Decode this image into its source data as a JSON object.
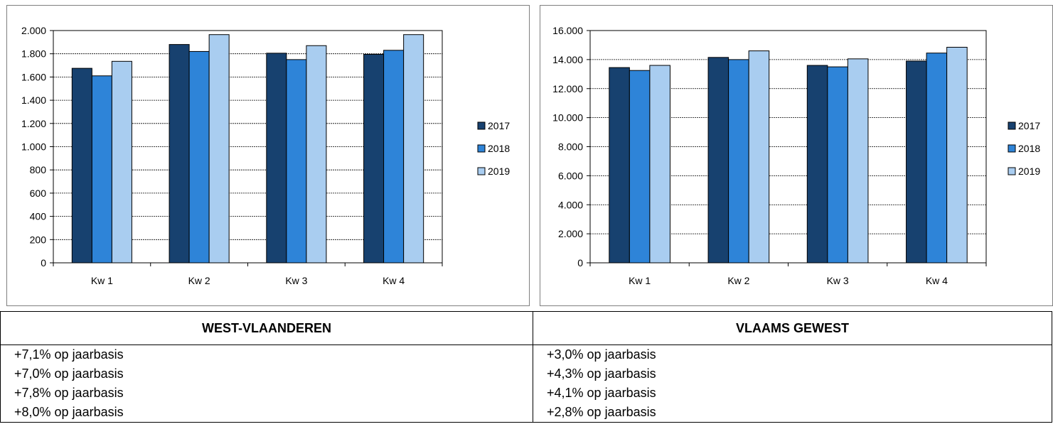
{
  "chart_data": [
    {
      "type": "bar",
      "categories": [
        "Kw 1",
        "Kw 2",
        "Kw 3",
        "Kw 4"
      ],
      "series": [
        {
          "name": "2017",
          "values": [
            1675,
            1880,
            1805,
            1795
          ]
        },
        {
          "name": "2018",
          "values": [
            1610,
            1820,
            1750,
            1830
          ]
        },
        {
          "name": "2019",
          "values": [
            1735,
            1965,
            1870,
            1965
          ]
        }
      ],
      "ylim": [
        0,
        2000
      ],
      "yticks": [
        0,
        200,
        400,
        600,
        800,
        1000,
        1200,
        1400,
        1600,
        1800,
        2000
      ],
      "ytick_labels": [
        "0",
        "200",
        "400",
        "600",
        "800",
        "1.000",
        "1.200",
        "1.400",
        "1.600",
        "1.800",
        "2.000"
      ],
      "title": "",
      "xlabel": "",
      "ylabel": "",
      "grid": true,
      "legend": "right"
    },
    {
      "type": "bar",
      "categories": [
        "Kw 1",
        "Kw 2",
        "Kw 3",
        "Kw 4"
      ],
      "series": [
        {
          "name": "2017",
          "values": [
            13450,
            14150,
            13600,
            13900
          ]
        },
        {
          "name": "2018",
          "values": [
            13250,
            14000,
            13500,
            14450
          ]
        },
        {
          "name": "2019",
          "values": [
            13600,
            14600,
            14050,
            14850
          ]
        }
      ],
      "ylim": [
        0,
        16000
      ],
      "yticks": [
        0,
        2000,
        4000,
        6000,
        8000,
        10000,
        12000,
        14000,
        16000
      ],
      "ytick_labels": [
        "0",
        "2.000",
        "4.000",
        "6.000",
        "8.000",
        "10.000",
        "12.000",
        "14.000",
        "16.000"
      ],
      "title": "",
      "xlabel": "",
      "ylabel": "",
      "grid": true,
      "legend": "right"
    }
  ],
  "colors": {
    "series": [
      "#17416f",
      "#2e84d8",
      "#a9cdf0"
    ],
    "border": "#000000",
    "frame": "#7f7f7f"
  },
  "table": {
    "headers": [
      "WEST-VLAANDEREN",
      "VLAAMS GEWEST"
    ],
    "rows": [
      [
        "+7,1% op jaarbasis",
        "+3,0% op jaarbasis"
      ],
      [
        "+7,0% op jaarbasis",
        "+4,3% op jaarbasis"
      ],
      [
        "+7,8% op jaarbasis",
        "+4,1% op jaarbasis"
      ],
      [
        "+8,0% op jaarbasis",
        "+2,8% op jaarbasis"
      ]
    ]
  }
}
